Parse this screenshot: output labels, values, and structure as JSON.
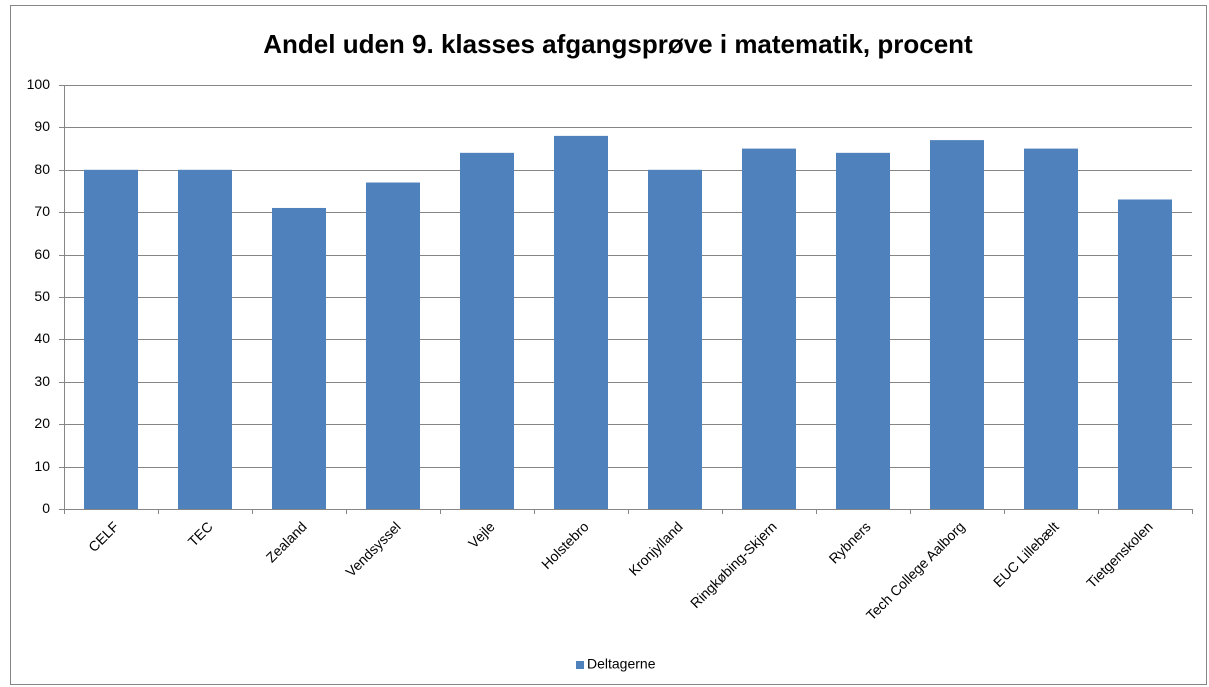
{
  "chart_data": {
    "type": "bar",
    "title": "Andel uden 9. klasses afgangsprøve i matematik, procent",
    "categories": [
      "CELF",
      "TEC",
      "Zealand",
      "Vendsyssel",
      "Vejle",
      "Holstebro",
      "Kronjylland",
      "Ringkøbing-Skjern",
      "Rybners",
      "Tech College Aalborg",
      "EUC Lillebælt",
      "Tietgenskolen"
    ],
    "series": [
      {
        "name": "Deltagerne",
        "color": "#4f81bd",
        "values": [
          80,
          80,
          71,
          77,
          84,
          88,
          80,
          85,
          84,
          87,
          85,
          73
        ]
      }
    ],
    "ylim": [
      0,
      100
    ],
    "yticks": [
      0,
      10,
      20,
      30,
      40,
      50,
      60,
      70,
      80,
      90,
      100
    ],
    "grid": true,
    "legend": "bottom"
  }
}
